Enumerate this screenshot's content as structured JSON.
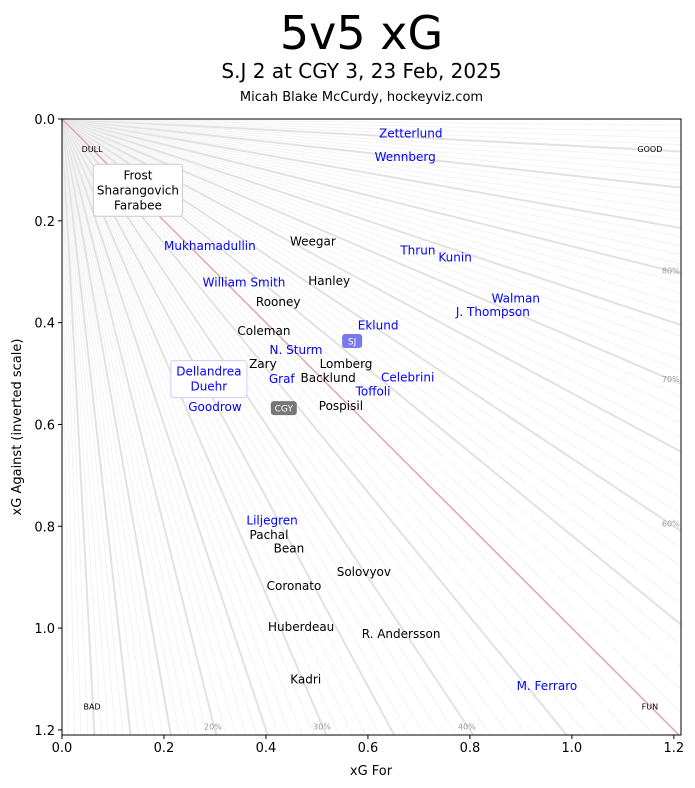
{
  "title": "5v5 xG",
  "subtitle": "S.J 2 at CGY 3, 23 Feb, 2025",
  "credit": "Micah Blake McCurdy, hockeyviz.com",
  "colors": {
    "SJ": "#0000ff",
    "CGY": "#000000",
    "diagonal": "#e0a8a8",
    "ray": "#dddddd",
    "sj_badge": "#7777ee",
    "cgy_badge": "#777777"
  },
  "chart_data": {
    "type": "scatter",
    "xlabel": "xG For",
    "ylabel": "xG Against (inverted scale)",
    "xlim": [
      0,
      1.214
    ],
    "ylim": [
      0,
      1.21
    ],
    "y_inverted": true,
    "xticks": [
      "0.0",
      "0.2",
      "0.4",
      "0.6",
      "0.8",
      "1.0",
      "1.2"
    ],
    "yticks": [
      "0.0",
      "0.2",
      "0.4",
      "0.6",
      "0.8",
      "1.0",
      "1.2"
    ],
    "corner_labels": [
      {
        "text": "DULL",
        "x": 0.059,
        "y": 0.059
      },
      {
        "text": "GOOD",
        "x": 1.153,
        "y": 0.059
      },
      {
        "text": "BAD",
        "x": 0.059,
        "y": 1.154
      },
      {
        "text": "FUN",
        "x": 1.153,
        "y": 1.154
      }
    ],
    "percent_labels": [
      {
        "text": "20%",
        "x": 0.296,
        "y": 1.193
      },
      {
        "text": "30%",
        "x": 0.51,
        "y": 1.193
      },
      {
        "text": "40%",
        "x": 0.794,
        "y": 1.193
      },
      {
        "text": "80%",
        "x": 1.194,
        "y": 0.298
      },
      {
        "text": "70%",
        "x": 1.194,
        "y": 0.511
      },
      {
        "text": "60%",
        "x": 1.194,
        "y": 0.795
      }
    ],
    "team_markers": [
      {
        "text": "SJ",
        "team": "SJ",
        "x": 0.569,
        "y": 0.436
      },
      {
        "text": "CGY",
        "team": "CGY",
        "x": 0.435,
        "y": 0.568
      }
    ],
    "players": [
      {
        "name": "Zetterlund",
        "team": "SJ",
        "x": 0.684,
        "y": 0.028
      },
      {
        "name": "Wennberg",
        "team": "SJ",
        "x": 0.673,
        "y": 0.075
      },
      {
        "name": "Weegar",
        "team": "CGY",
        "x": 0.492,
        "y": 0.241
      },
      {
        "name": "Mukhamadullin",
        "team": "SJ",
        "x": 0.29,
        "y": 0.249
      },
      {
        "name": "Thrun",
        "team": "SJ",
        "x": 0.698,
        "y": 0.258
      },
      {
        "name": "Kunin",
        "team": "SJ",
        "x": 0.771,
        "y": 0.272
      },
      {
        "name": "William Smith",
        "team": "SJ",
        "x": 0.357,
        "y": 0.321
      },
      {
        "name": "Hanley",
        "team": "CGY",
        "x": 0.524,
        "y": 0.318
      },
      {
        "name": "Walman",
        "team": "SJ",
        "x": 0.89,
        "y": 0.353
      },
      {
        "name": "J. Thompson",
        "team": "SJ",
        "x": 0.845,
        "y": 0.371
      },
      {
        "name": "Rooney",
        "team": "CGY",
        "x": 0.424,
        "y": 0.359
      },
      {
        "name": "Eklund",
        "team": "SJ",
        "x": 0.62,
        "y": 0.406
      },
      {
        "name": "Coleman",
        "team": "CGY",
        "x": 0.396,
        "y": 0.416
      },
      {
        "name": "N. Sturm",
        "team": "SJ",
        "x": 0.459,
        "y": 0.454
      },
      {
        "name": "Lomberg",
        "team": "CGY",
        "x": 0.557,
        "y": 0.454
      },
      {
        "name": "Backlund",
        "team": "CGY",
        "x": 0.522,
        "y": 0.462
      },
      {
        "name": "Zary",
        "team": "CGY",
        "x": 0.394,
        "y": 0.462
      },
      {
        "name": "Graf",
        "team": "SJ",
        "x": 0.431,
        "y": 0.491
      },
      {
        "name": "Goodrow",
        "team": "SJ",
        "x": 0.3,
        "y": 0.566
      },
      {
        "name": "Toffoli",
        "team": "SJ",
        "x": 0.61,
        "y": 0.531
      },
      {
        "name": "Celebrini",
        "team": "SJ",
        "x": 0.678,
        "y": 0.531
      },
      {
        "name": "Pospisil",
        "team": "CGY",
        "x": 0.547,
        "y": 0.548
      },
      {
        "name": "Liljegren",
        "team": "SJ",
        "x": 0.412,
        "y": 0.789
      },
      {
        "name": "Pachal",
        "team": "CGY",
        "x": 0.406,
        "y": 0.817
      },
      {
        "name": "Bean",
        "team": "CGY",
        "x": 0.445,
        "y": 0.828
      },
      {
        "name": "Solovyov",
        "team": "CGY",
        "x": 0.592,
        "y": 0.89
      },
      {
        "name": "Coronato",
        "team": "CGY",
        "x": 0.455,
        "y": 0.917
      },
      {
        "name": "Huberdeau",
        "team": "CGY",
        "x": 0.469,
        "y": 0.998
      },
      {
        "name": "R. Andersson",
        "team": "CGY",
        "x": 0.665,
        "y": 1.012
      },
      {
        "name": "Kadri",
        "team": "CGY",
        "x": 0.478,
        "y": 1.101
      },
      {
        "name": "M. Ferraro",
        "team": "SJ",
        "x": 0.951,
        "y": 1.114
      }
    ],
    "groups": [
      {
        "team": "CGY",
        "x": 0.149,
        "y": 0.14,
        "names": [
          "Frost",
          "Sharangovich",
          "Farabee"
        ]
      },
      {
        "team": "SJ",
        "x": 0.288,
        "y": 0.511,
        "names": [
          "Dellandrea",
          "Duehr"
        ]
      }
    ]
  }
}
